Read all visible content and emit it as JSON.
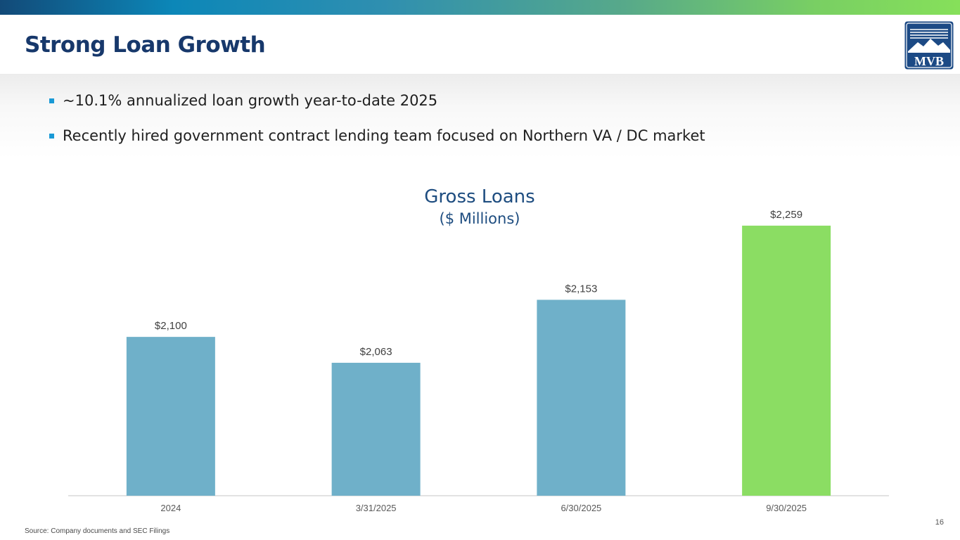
{
  "header": {
    "title": "Strong Loan Growth",
    "logo_text": "MVB"
  },
  "bullets": [
    "~10.1% annualized loan growth year-to-date 2025",
    "Recently hired government contract lending team focused on Northern VA / DC market"
  ],
  "chart_data": {
    "type": "bar",
    "title": "Gross Loans",
    "subtitle": "($ Millions)",
    "categories": [
      "2024",
      "3/31/2025",
      "6/30/2025",
      "9/30/2025"
    ],
    "values": [
      2100,
      2063,
      2153,
      2259
    ],
    "data_labels": [
      "$2,100",
      "$2,063",
      "$2,153",
      "$2,259"
    ],
    "ylim": [
      1873,
      2275
    ],
    "colors": [
      "#6fb0c9",
      "#6fb0c9",
      "#6fb0c9",
      "#8bdd63"
    ],
    "xlabel": "",
    "ylabel": "",
    "grid": false
  },
  "footer": {
    "source": "Source: Company documents and SEC Filings",
    "page_number": "16"
  },
  "colors": {
    "title": "#17386b",
    "bullet_marker": "#1a9ad6",
    "bar_default": "#6fb0c9",
    "bar_highlight": "#8bdd63",
    "chart_title": "#1e4d80"
  }
}
